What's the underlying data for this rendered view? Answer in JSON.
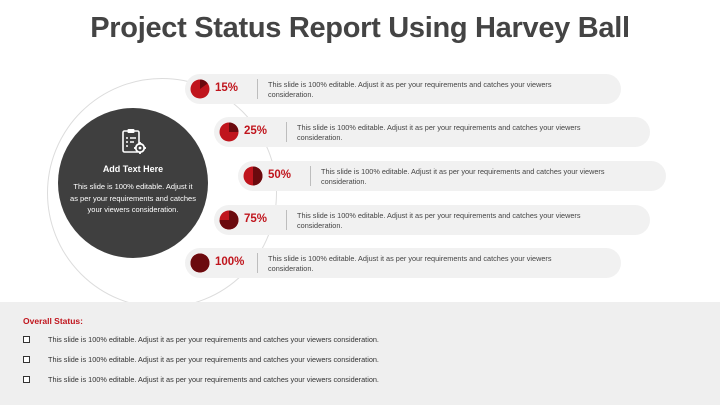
{
  "slide": {
    "title": "Project Status Report Using Harvey Ball"
  },
  "hub": {
    "icon": "clipboard-gear-icon",
    "heading": "Add Text Here",
    "text": "This slide is 100% editable. Adjust it as per your requirements and catches your viewers consideration."
  },
  "colors": {
    "accent": "#c0151d",
    "accent_dark": "#6b0a0e",
    "hub_bg": "#3f3f3f",
    "row_bg": "#f1f1f1",
    "panel_bg": "#efefef"
  },
  "rows": [
    {
      "percent_label": "15%",
      "fill": 0.15,
      "text": "This slide is 100% editable. Adjust it as per your requirements and catches your viewers consideration."
    },
    {
      "percent_label": "25%",
      "fill": 0.25,
      "text": "This slide is 100% editable. Adjust it as per your requirements and catches your viewers consideration."
    },
    {
      "percent_label": "50%",
      "fill": 0.5,
      "text": "This slide is 100% editable. Adjust it as per your requirements and catches your viewers consideration."
    },
    {
      "percent_label": "75%",
      "fill": 0.75,
      "text": "This slide is 100% editable. Adjust it as per your requirements and catches your viewers consideration."
    },
    {
      "percent_label": "100%",
      "fill": 1.0,
      "text": "This slide is 100% editable. Adjust it as per your requirements and catches your viewers consideration."
    }
  ],
  "overall": {
    "title": "Overall Status:",
    "items": [
      "This slide is 100% editable. Adjust it as per your requirements and catches your viewers consideration.",
      "This slide is 100% editable. Adjust it as per your requirements and catches your viewers consideration.",
      "This slide is 100% editable. Adjust it as per your requirements and catches your viewers consideration."
    ]
  }
}
